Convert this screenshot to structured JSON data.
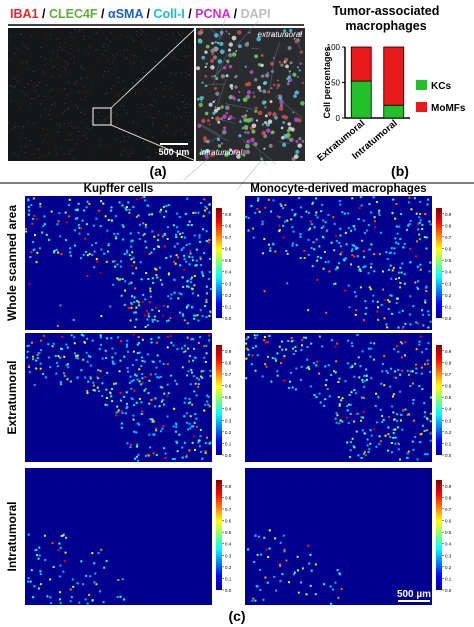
{
  "panel_a": {
    "stains": [
      {
        "label": "IBA1",
        "color": "#e3262b"
      },
      {
        "label": "CLEC4F",
        "color": "#5fae3a"
      },
      {
        "label": "αSMA",
        "color": "#1f5fbf"
      },
      {
        "label": "Coll-I",
        "color": "#27b5d8"
      },
      {
        "label": "PCNA",
        "color": "#d22fc9"
      },
      {
        "label": "DAPI",
        "color": "#bdbdbd"
      }
    ],
    "separator": "/",
    "inset_labels": [
      "extratumoral",
      "intratumoral"
    ],
    "scale_bar": "500 µm",
    "label": "(a)"
  },
  "panel_b": {
    "label": "(b)"
  },
  "chart_data": {
    "type": "bar",
    "stacked": true,
    "title": "Tumor-associated macrophages",
    "y_label": "Cell percentages",
    "categories": [
      "Extratumoral",
      "Intratumoral"
    ],
    "series": [
      {
        "name": "KCs",
        "color": "#22c02a",
        "values": [
          52,
          18
        ]
      },
      {
        "name": "MoMFs",
        "color": "#e8181b",
        "values": [
          48,
          82
        ]
      }
    ],
    "ylim": [
      0,
      100
    ],
    "yticks": [
      0,
      50,
      100
    ],
    "legend": "right"
  },
  "panel_c": {
    "columns": [
      "Kupffer cells",
      "Monocyte-derived macrophages"
    ],
    "rows": [
      "Whole scanned area",
      "Extratumoral",
      "Intratumoral"
    ],
    "colorbar_ticks": [
      {
        "value": 0,
        "label": "0.0"
      },
      0.1,
      0.2,
      0.3,
      0.4,
      0.5,
      0.6,
      0.7,
      0.8,
      0.9
    ],
    "colorbar_lim": [
      0,
      0.95
    ],
    "scale_bar": "500 µm",
    "label": "(c)"
  }
}
